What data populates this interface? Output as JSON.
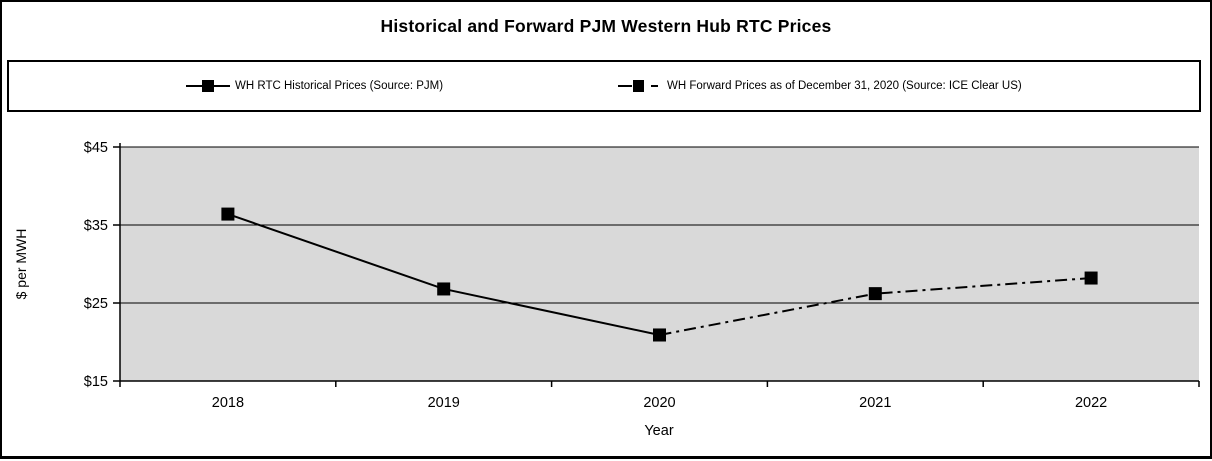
{
  "page": {
    "title": "Historical and Forward PJM Western Hub RTC Prices"
  },
  "legend": {
    "items": [
      {
        "label": "WH RTC Historical Prices (Source: PJM)",
        "line_style": "solid",
        "marker": "filled-square"
      },
      {
        "label": "WH Forward Prices as of December 31, 2020 (Source: ICE Clear US)",
        "line_style": "dash-dot",
        "marker": "filled-square"
      }
    ]
  },
  "chart_data": {
    "type": "line",
    "title": "Historical and Forward PJM Western Hub RTC Prices",
    "xlabel": "Year",
    "ylabel": "$ per MWH",
    "categories": [
      "2018",
      "2019",
      "2020",
      "2021",
      "2022"
    ],
    "series": [
      {
        "name": "WH RTC Historical Prices (Source: PJM)",
        "categories": [
          "2018",
          "2019",
          "2020"
        ],
        "values": [
          36.4,
          26.8,
          20.9
        ],
        "line_style": "solid",
        "marker": "filled-square"
      },
      {
        "name": "WH Forward Prices as of December 31, 2020 (Source: ICE Clear US)",
        "categories": [
          "2020",
          "2021",
          "2022"
        ],
        "values": [
          20.9,
          26.2,
          28.2
        ],
        "line_style": "dash-dot",
        "marker": "filled-square"
      }
    ],
    "ylim": [
      15,
      45
    ],
    "yticks": [
      15,
      25,
      35,
      45
    ],
    "ytick_labels": [
      "$15",
      "$25",
      "$35",
      "$45"
    ],
    "grid": true,
    "legend_position": "top",
    "colors": {
      "line": "#000000",
      "marker": "#000000",
      "plot_background": "#d9d9d9",
      "chart_background": "#ffffff",
      "border": "#000000"
    }
  }
}
